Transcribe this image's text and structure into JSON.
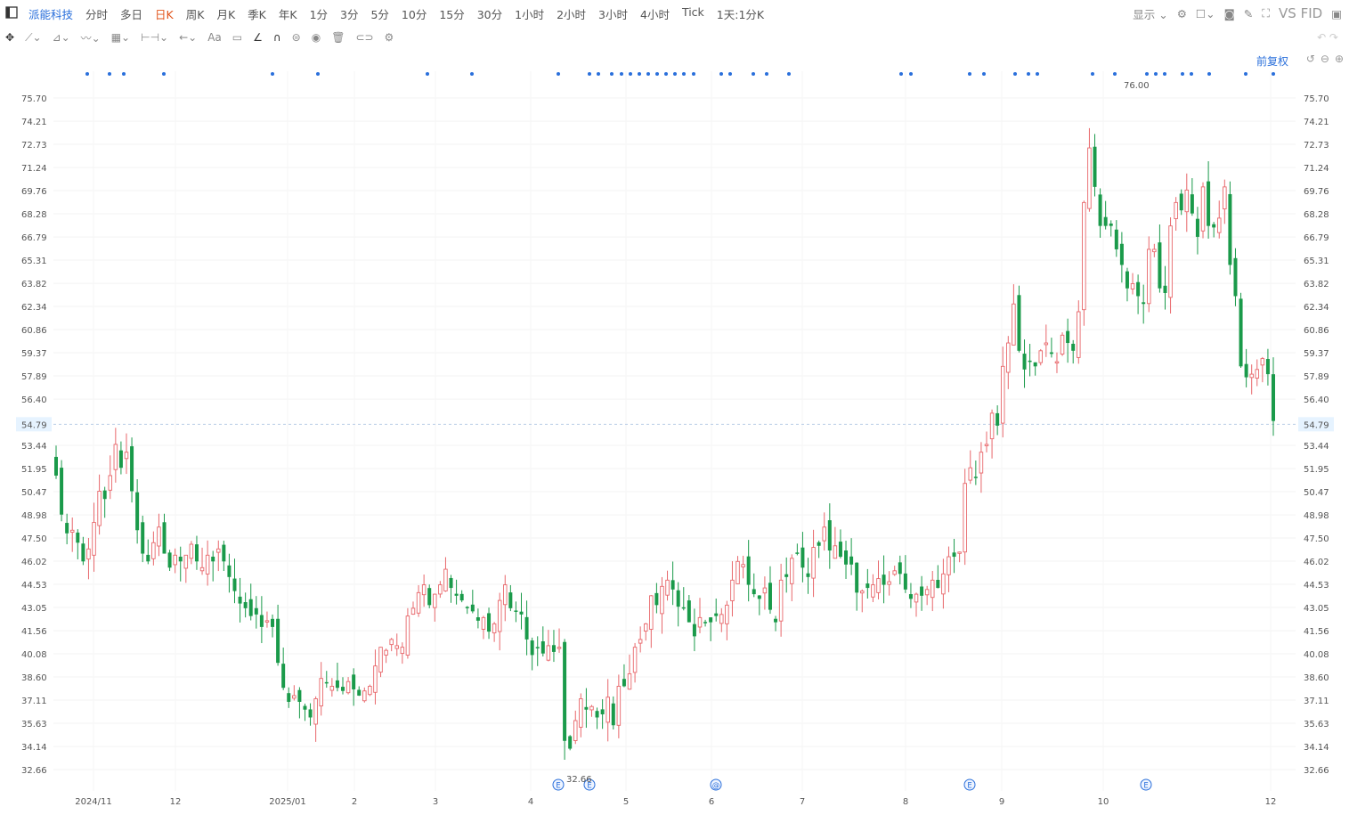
{
  "toolbar": {
    "sidebar_icon": "sidebar-toggle-icon",
    "stock_name": "派能科技",
    "periods": [
      "分时",
      "多日",
      "日K",
      "周K",
      "月K",
      "季K",
      "年K",
      "1分",
      "3分",
      "5分",
      "10分",
      "15分",
      "30分",
      "1小时",
      "2小时",
      "3小时",
      "4小时",
      "Tick",
      "1天:1分K"
    ],
    "active_period": "日K",
    "display_label": "显示",
    "vs_label": "VS",
    "fi_label": "FID"
  },
  "drawing_tools": [
    "move-icon",
    "line-tool-icon",
    "ray-tool-icon",
    "trend-tool-icon",
    "fib-tool-icon",
    "measure-tool-icon",
    "arrow-tool-icon",
    "text-tool-icon",
    "comment-tool-icon",
    "angle-tool-icon",
    "magnet-icon",
    "lock-icon",
    "eye-icon",
    "trash-icon",
    "link-icon",
    "settings-icon"
  ],
  "text_tool_label": "Aa",
  "adjust_label": "前复权",
  "chart_data": {
    "type": "candlestick",
    "y_ticks": [
      "75.70",
      "74.21",
      "72.73",
      "71.24",
      "69.76",
      "68.28",
      "66.79",
      "65.31",
      "63.82",
      "62.34",
      "60.86",
      "59.37",
      "57.89",
      "56.40",
      "54.79",
      "53.44",
      "51.95",
      "50.47",
      "48.98",
      "47.50",
      "46.02",
      "44.53",
      "43.05",
      "41.56",
      "40.08",
      "38.60",
      "37.11",
      "35.63",
      "34.14",
      "32.66"
    ],
    "ylim": [
      32.66,
      75.7
    ],
    "x_labels": [
      "2024/11",
      "12",
      "2025/01",
      "2",
      "3",
      "4",
      "5",
      "6",
      "7",
      "8",
      "9",
      "10",
      "12"
    ],
    "current_price": 54.79,
    "high_label": "76.00",
    "low_label": "32.66",
    "event_markers": [
      "E",
      "E",
      "@",
      "E",
      "E"
    ],
    "closes": [
      51.5,
      49.0,
      47.8,
      48.0,
      47.2,
      46.0,
      46.8,
      48.5,
      50.5,
      50.0,
      51.5,
      53.5,
      52.0,
      53.0,
      50.5,
      48.0,
      46.5,
      46.0,
      47.2,
      48.2,
      46.5,
      45.6,
      46.4,
      46.0,
      46.4,
      47.1,
      46.0,
      45.6,
      46.4,
      46.0,
      46.8,
      46.0,
      45.0,
      44.1,
      43.3,
      43.0,
      42.5,
      42.6,
      41.8,
      42.2,
      41.8,
      39.5,
      37.9,
      37.0,
      37.4,
      37.0,
      36.5,
      36.0,
      37.2,
      38.5,
      38.2,
      38.0,
      37.9,
      37.7,
      38.3,
      37.8,
      37.4,
      37.7,
      38.0,
      39.3,
      40.5,
      40.3,
      41.0,
      40.6,
      40.5,
      42.5,
      43.0,
      44.0,
      44.5,
      43.2,
      43.9,
      44.5,
      45.5,
      44.3,
      43.8,
      43.5,
      43.0,
      42.8,
      42.2,
      42.4,
      41.5,
      42.0,
      43.5,
      44.5,
      43.0,
      42.8,
      42.6,
      41.0,
      40.0,
      40.5,
      40.1,
      40.6,
      40.2,
      40.5,
      34.5,
      34.0,
      35.8,
      37.2,
      36.5,
      36.7,
      36.0,
      36.2,
      37.3,
      35.5,
      38.0,
      38.0,
      38.8,
      40.5,
      41.0,
      42.0,
      43.8,
      43.2,
      44.4,
      44.8,
      44.2,
      43.1,
      43.0,
      42.1,
      41.2,
      42.4,
      42.1,
      42.1,
      42.5,
      42.6,
      43.2,
      44.8,
      46.0,
      45.8,
      44.5,
      43.9,
      43.6,
      44.3,
      42.9,
      42.1,
      44.8,
      45.0,
      46.2,
      46.5,
      45.6,
      45.0,
      46.9,
      47.0,
      48.2,
      46.7,
      47.0,
      46.3,
      45.8,
      45.8,
      44.0,
      44.1,
      44.3,
      44.5,
      44.9,
      44.5,
      44.7,
      45.4,
      45.2,
      44.2,
      43.6,
      43.9,
      43.8,
      44.2,
      44.8,
      44.3,
      45.2,
      46.3,
      46.3,
      46.6,
      51.0,
      52.0,
      51.4,
      53.0,
      53.5,
      55.5,
      54.7,
      58.5,
      60.0,
      62.5,
      59.5,
      58.3,
      58.8,
      58.5,
      59.5,
      60.0,
      59.3,
      58.8,
      60.5,
      60.0,
      59.5,
      62.0,
      69.0,
      72.5,
      70.0,
      67.5,
      67.5,
      67.5,
      66.0,
      65.0,
      63.5,
      63.8,
      63.0,
      62.5,
      66.0,
      66.0,
      63.5,
      63.2,
      67.5,
      69.0,
      68.5,
      69.8,
      68.3,
      66.8,
      70.0,
      67.5,
      67.4,
      68.0,
      70.0,
      65.0,
      63.0,
      58.5,
      57.8,
      58.0,
      58.3,
      59.0,
      58.0,
      55.0
    ]
  }
}
